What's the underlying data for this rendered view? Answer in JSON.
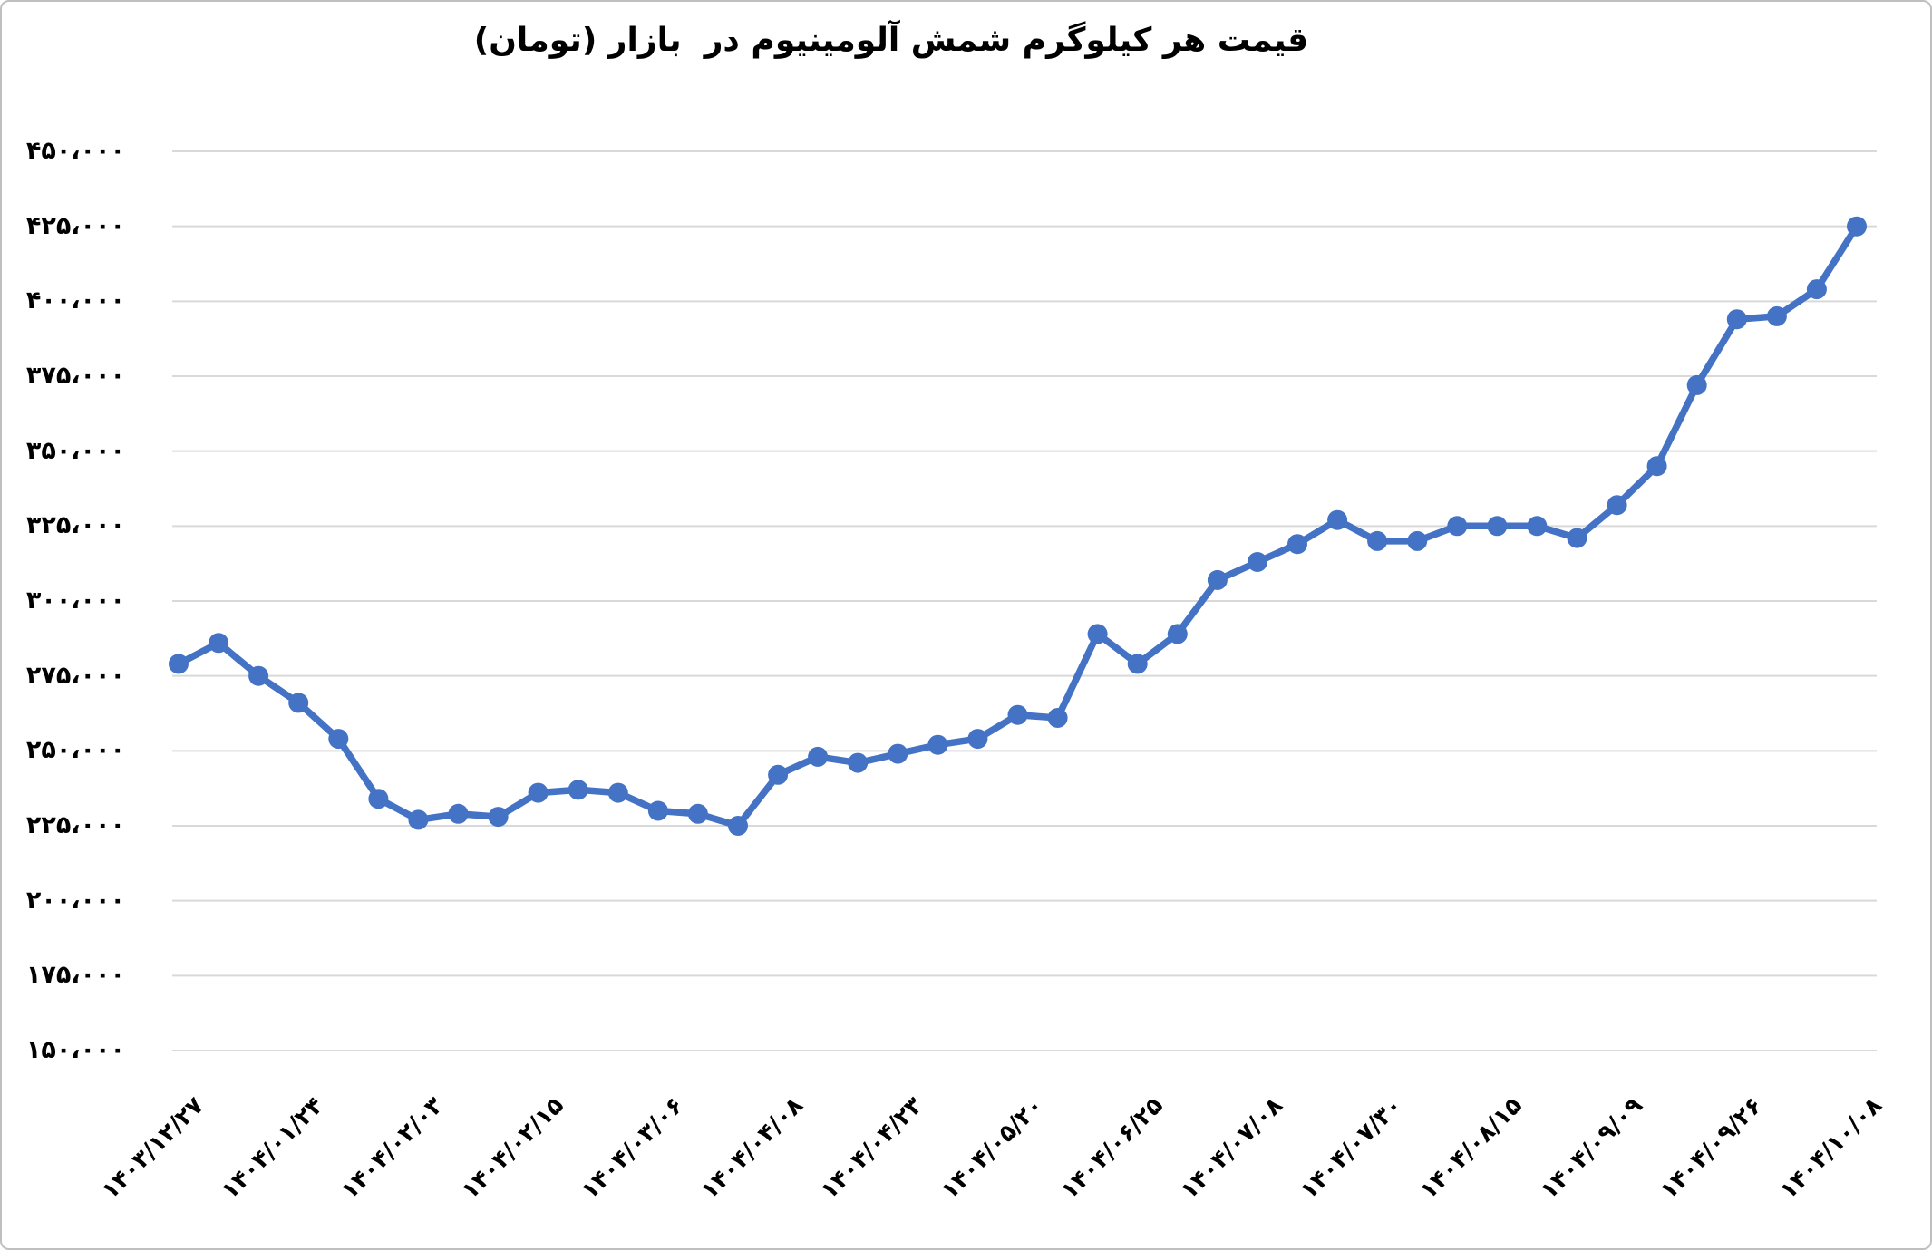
{
  "title": "قیمت هر کیلوگرم شمش آلومینیوم در  بازار (تومان)",
  "chart_data": {
    "type": "line",
    "title": "قیمت هر کیلوگرم شمش آلومینیوم در بازار (تومان)",
    "n_points": 43,
    "values": [
      279000,
      286000,
      275000,
      266000,
      254000,
      234000,
      227000,
      229000,
      228000,
      236000,
      237000,
      236000,
      230000,
      229000,
      225000,
      242000,
      248000,
      246000,
      249000,
      252000,
      254000,
      262000,
      261000,
      289000,
      279000,
      289000,
      307000,
      313000,
      319000,
      327000,
      320000,
      320000,
      325000,
      325000,
      325000,
      321000,
      332000,
      345000,
      372000,
      394000,
      395000,
      404000,
      425000
    ],
    "x_tick_labels": [
      "۱۴۰۳/۱۲/۲۷",
      "۱۴۰۴/۰۱/۲۴",
      "۱۴۰۴/۰۲/۰۳",
      "۱۴۰۴/۰۲/۱۵",
      "۱۴۰۴/۰۳/۰۶",
      "۱۴۰۴/۰۴/۰۸",
      "۱۴۰۴/۰۴/۲۳",
      "۱۴۰۴/۰۵/۲۰",
      "۱۴۰۴/۰۶/۲۵",
      "۱۴۰۴/۰۷/۰۸",
      "۱۴۰۴/۰۷/۳۰",
      "۱۴۰۴/۰۸/۱۵",
      "۱۴۰۴/۰۹/۰۹",
      "۱۴۰۴/۰۹/۲۶",
      "۱۴۰۴/۱۰/۰۸"
    ],
    "x_tick_interval": 3,
    "y_tick_labels": [
      "۴۵۰،۰۰۰",
      "۴۲۵،۰۰۰",
      "۴۰۰،۰۰۰",
      "۳۷۵،۰۰۰",
      "۳۵۰،۰۰۰",
      "۳۲۵،۰۰۰",
      "۳۰۰،۰۰۰",
      "۲۷۵،۰۰۰",
      "۲۵۰،۰۰۰",
      "۲۲۵،۰۰۰",
      "۲۰۰،۰۰۰",
      "۱۷۵،۰۰۰",
      "۱۵۰،۰۰۰"
    ],
    "y_tick_values": [
      450000,
      425000,
      400000,
      375000,
      350000,
      325000,
      300000,
      275000,
      250000,
      225000,
      200000,
      175000,
      150000
    ],
    "ylim": [
      150000,
      450000
    ],
    "y_tick_step": 25000,
    "grid": true,
    "legend": "none",
    "colors": {
      "line": "#4472C4",
      "marker": "#4472C4",
      "gridline": "#D9D9D9",
      "text": "#000000",
      "background": "#FFFFFF",
      "border": "#BFBFBF"
    }
  }
}
